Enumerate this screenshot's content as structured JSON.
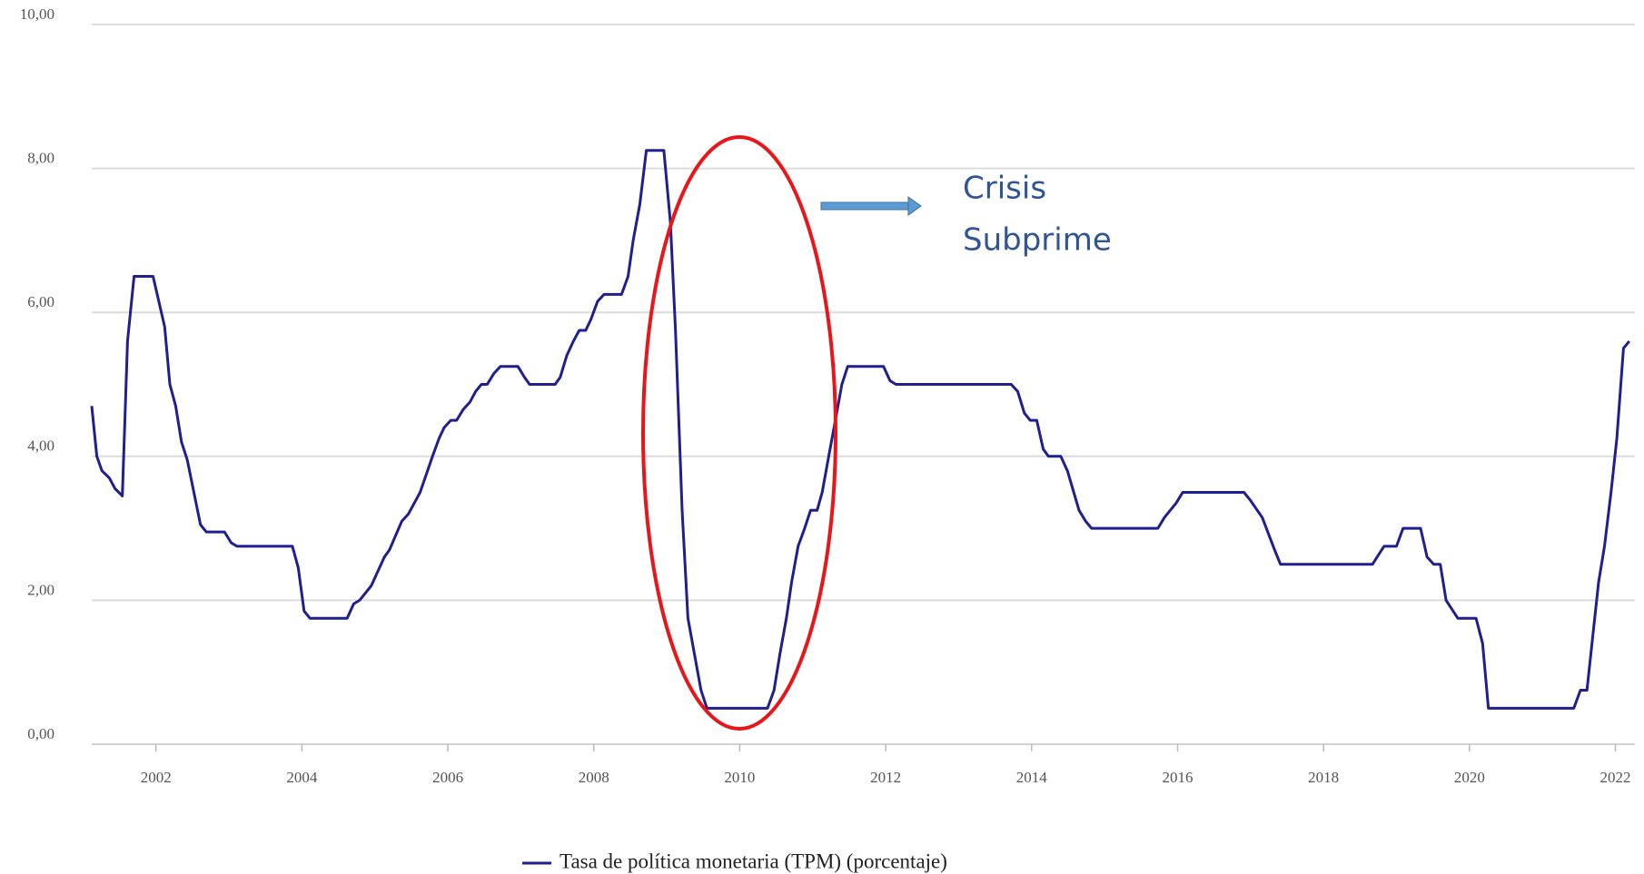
{
  "chart_data": {
    "type": "line",
    "annotation": [
      "Crisis",
      "Subprime"
    ],
    "series": [
      {
        "name": "Tasa de política monetaria (TPM) (porcentaje)",
        "color": "#1f1f8f",
        "x": [
          2001.12,
          2001.19,
          2001.26,
          2001.36,
          2001.44,
          2001.54,
          2001.61,
          2001.7,
          2001.96,
          2002.12,
          2002.19,
          2002.27,
          2002.35,
          2002.43,
          2002.61,
          2002.69,
          2002.94,
          2003.03,
          2003.11,
          2003.87,
          2003.95,
          2004.03,
          2004.11,
          2004.62,
          2004.71,
          2004.79,
          2004.95,
          2005.13,
          2005.2,
          2005.37,
          2005.46,
          2005.62,
          2005.79,
          2005.88,
          2005.95,
          2006.04,
          2006.12,
          2006.21,
          2006.3,
          2006.38,
          2006.46,
          2006.54,
          2006.63,
          2006.72,
          2006.96,
          2007.05,
          2007.12,
          2007.47,
          2007.54,
          2007.63,
          2007.72,
          2007.8,
          2007.89,
          2007.96,
          2008.05,
          2008.14,
          2008.38,
          2008.47,
          2008.54,
          2008.63,
          2008.72,
          2008.8,
          2008.96,
          2009.05,
          2009.12,
          2009.21,
          2009.29,
          2009.38,
          2009.47,
          2009.55,
          2010.38,
          2010.47,
          2010.55,
          2010.64,
          2010.71,
          2010.8,
          2010.89,
          2010.97,
          2011.06,
          2011.13,
          2011.22,
          2011.31,
          2011.4,
          2011.48,
          2011.97,
          2012.06,
          2012.14,
          2013.72,
          2013.81,
          2013.9,
          2013.98,
          2014.07,
          2014.16,
          2014.23,
          2014.4,
          2014.49,
          2014.65,
          2014.74,
          2014.82,
          2015.73,
          2015.82,
          2015.98,
          2016.07,
          2016.91,
          2016.99,
          2017.16,
          2017.33,
          2017.41,
          2018.67,
          2018.83,
          2019.0,
          2019.09,
          2019.33,
          2019.42,
          2019.51,
          2019.6,
          2019.68,
          2019.84,
          2020.09,
          2020.18,
          2020.26,
          2021.43,
          2021.52,
          2021.61,
          2021.69,
          2021.77,
          2021.85,
          2021.94,
          2022.02,
          2022.11,
          2022.19
        ],
        "values": [
          4.7,
          4.0,
          3.8,
          3.7,
          3.55,
          3.45,
          5.6,
          6.5,
          6.5,
          5.8,
          5.0,
          4.7,
          4.2,
          3.95,
          3.05,
          2.95,
          2.95,
          2.8,
          2.75,
          2.75,
          2.45,
          1.85,
          1.75,
          1.75,
          1.95,
          2.0,
          2.2,
          2.6,
          2.7,
          3.1,
          3.2,
          3.5,
          4.0,
          4.25,
          4.4,
          4.5,
          4.5,
          4.65,
          4.75,
          4.9,
          5.0,
          5.0,
          5.15,
          5.25,
          5.25,
          5.1,
          5.0,
          5.0,
          5.1,
          5.4,
          5.6,
          5.75,
          5.75,
          5.9,
          6.15,
          6.25,
          6.25,
          6.5,
          7.0,
          7.5,
          8.25,
          8.25,
          8.25,
          7.25,
          5.75,
          3.25,
          1.75,
          1.25,
          0.75,
          0.5,
          0.5,
          0.75,
          1.25,
          1.75,
          2.25,
          2.75,
          3.0,
          3.25,
          3.25,
          3.5,
          4.0,
          4.5,
          5.0,
          5.25,
          5.25,
          5.05,
          5.0,
          5.0,
          4.9,
          4.6,
          4.5,
          4.5,
          4.1,
          4.0,
          4.0,
          3.8,
          3.25,
          3.1,
          3.0,
          3.0,
          3.15,
          3.35,
          3.5,
          3.5,
          3.4,
          3.15,
          2.7,
          2.5,
          2.5,
          2.75,
          2.75,
          3.0,
          3.0,
          2.6,
          2.5,
          2.5,
          2.0,
          1.75,
          1.75,
          1.4,
          0.5,
          0.5,
          0.75,
          0.75,
          1.5,
          2.25,
          2.75,
          3.5,
          4.25,
          5.5,
          5.6
        ]
      }
    ],
    "xlim": [
      2001.12,
      2022.23
    ],
    "xticks": [
      2002,
      2004,
      2006,
      2008,
      2010,
      2012,
      2014,
      2016,
      2018,
      2020,
      2022
    ],
    "ylim": [
      0,
      10
    ],
    "yticks": [
      {
        "value": 0,
        "label": "0,00"
      },
      {
        "value": 2,
        "label": "2,00"
      },
      {
        "value": 4,
        "label": "4,00"
      },
      {
        "value": 6,
        "label": "6,00"
      },
      {
        "value": 8,
        "label": "8,00"
      },
      {
        "value": 10,
        "label": "10,00"
      }
    ],
    "grid": true
  }
}
